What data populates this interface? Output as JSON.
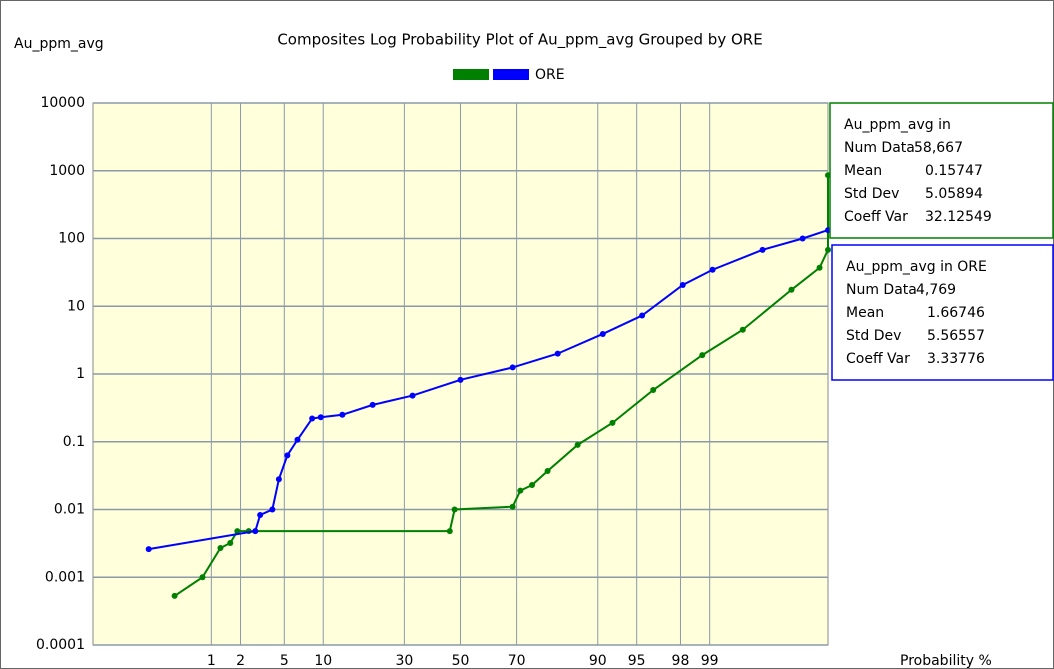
{
  "chart_data": {
    "type": "line",
    "title": "Composites Log Probability Plot of Au_ppm_avg Grouped by ORE",
    "ylabel": "Au_ppm_avg",
    "xlabel": "Probability %",
    "xscale": "probability",
    "yscale": "log",
    "xlim": [
      0.03,
      99.97
    ],
    "xticks": [
      1,
      2,
      5,
      10,
      30,
      50,
      70,
      90,
      95,
      98,
      99
    ],
    "ylim": [
      0.0001,
      10000
    ],
    "yticks": [
      0.0001,
      0.001,
      0.01,
      0.1,
      1,
      10,
      100,
      1000,
      10000
    ],
    "grid": true,
    "legend": "top",
    "series": [
      {
        "color": "#008000",
        "x": [
          0.38,
          0.8,
          1.25,
          1.58,
          1.86,
          2.4,
          46,
          47.8,
          68.7,
          71.2,
          74.8,
          79.2,
          86.3,
          92.2,
          96.4,
          98.8,
          99.58,
          99.9,
          99.96,
          99.97,
          99.97
        ],
        "values": [
          0.00053,
          0.001,
          0.0027,
          0.0032,
          0.0048,
          0.0048,
          0.0048,
          0.01,
          0.011,
          0.019,
          0.023,
          0.037,
          0.09,
          0.19,
          0.58,
          1.9,
          4.5,
          17.5,
          37,
          68,
          860
        ]
      },
      {
        "name": "ORE",
        "color": "#0000ff",
        "x": [
          0.18,
          2.77,
          3.07,
          3.95,
          4.5,
          5.3,
          6.4,
          8.3,
          9.6,
          13.5,
          20.6,
          32.7,
          50,
          68.7,
          81.8,
          90.8,
          95.5,
          98.1,
          99.07,
          99.76,
          99.93,
          99.97
        ],
        "values": [
          0.0026,
          0.0048,
          0.0083,
          0.01,
          0.028,
          0.063,
          0.107,
          0.22,
          0.23,
          0.25,
          0.35,
          0.48,
          0.82,
          1.25,
          2.0,
          3.9,
          7.3,
          20.6,
          34.6,
          68,
          100,
          133
        ]
      }
    ],
    "stats": [
      {
        "color": "#008000",
        "title": "Au_ppm_avg in",
        "rows": [
          [
            "Num Data",
            "58,667"
          ],
          [
            "Mean",
            "0.15747"
          ],
          [
            "Std Dev",
            "5.05894"
          ],
          [
            "Coeff Var",
            "32.12549"
          ]
        ]
      },
      {
        "color": "#0000ff",
        "title": "Au_ppm_avg in ORE",
        "rows": [
          [
            "Num Data",
            "4,769"
          ],
          [
            "Mean",
            "1.66746"
          ],
          [
            "Std Dev",
            "5.56557"
          ],
          [
            "Coeff Var",
            "3.33776"
          ]
        ]
      }
    ]
  }
}
